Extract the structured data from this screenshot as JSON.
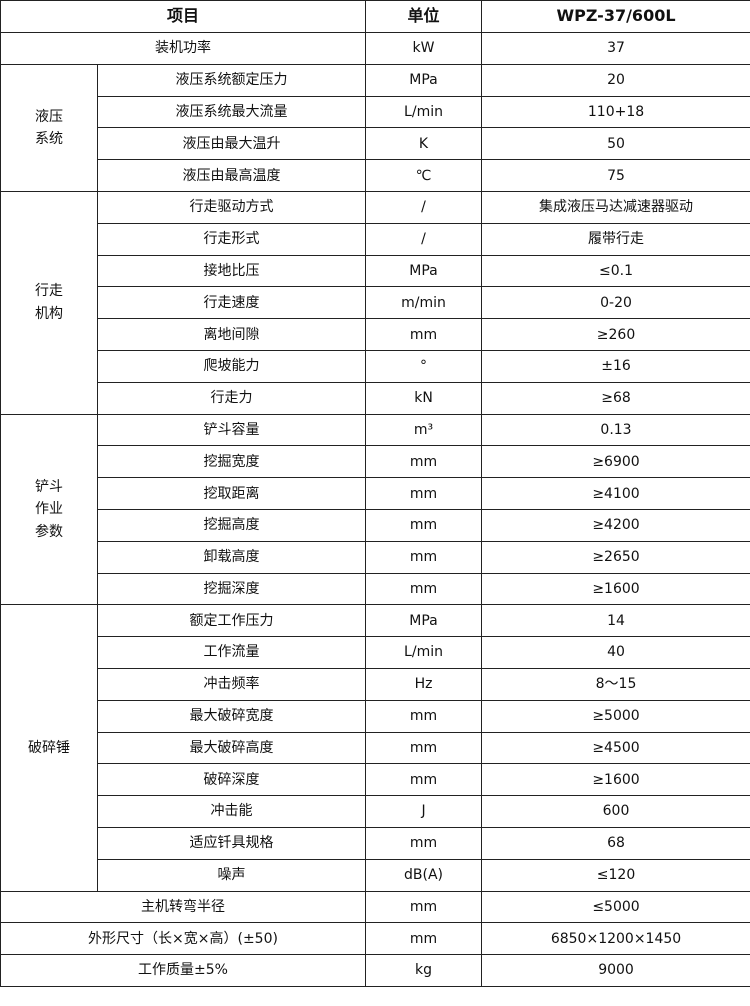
{
  "header": {
    "item": "项目",
    "unit": "单位",
    "model": "WPZ-37/600L"
  },
  "rows_before": [
    {
      "label": "装机功率",
      "unit": "kW",
      "value": "37"
    }
  ],
  "groups": [
    {
      "name": "液压\n系统",
      "rows": [
        {
          "label": "液压系统额定压力",
          "unit": "MPa",
          "value": "20"
        },
        {
          "label": "液压系统最大流量",
          "unit": "L/min",
          "value": "110+18"
        },
        {
          "label": "液压由最大温升",
          "unit": "K",
          "value": "50"
        },
        {
          "label": "液压由最高温度",
          "unit": "℃",
          "value": "75"
        }
      ]
    },
    {
      "name": "行走\n机构",
      "rows": [
        {
          "label": "行走驱动方式",
          "unit": "/",
          "value": "集成液压马达减速器驱动"
        },
        {
          "label": "行走形式",
          "unit": "/",
          "value": "履带行走"
        },
        {
          "label": "接地比压",
          "unit": "MPa",
          "value": "≤0.1"
        },
        {
          "label": "行走速度",
          "unit": "m/min",
          "value": "0-20"
        },
        {
          "label": "离地间隙",
          "unit": "mm",
          "value": "≥260"
        },
        {
          "label": "爬坡能力",
          "unit": "°",
          "value": "±16"
        },
        {
          "label": "行走力",
          "unit": "kN",
          "value": "≥68"
        }
      ]
    },
    {
      "name": "铲斗\n作业\n参数",
      "rows": [
        {
          "label": "铲斗容量",
          "unit": "m³",
          "value": "0.13"
        },
        {
          "label": "挖掘宽度",
          "unit": "mm",
          "value": "≥6900"
        },
        {
          "label": "挖取距离",
          "unit": "mm",
          "value": "≥4100"
        },
        {
          "label": "挖掘高度",
          "unit": "mm",
          "value": "≥4200"
        },
        {
          "label": "卸载高度",
          "unit": "mm",
          "value": "≥2650"
        },
        {
          "label": "挖掘深度",
          "unit": "mm",
          "value": "≥1600"
        }
      ]
    },
    {
      "name": "破碎锤",
      "rows": [
        {
          "label": "额定工作压力",
          "unit": "MPa",
          "value": "14"
        },
        {
          "label": "工作流量",
          "unit": "L/min",
          "value": "40"
        },
        {
          "label": "冲击频率",
          "unit": "Hz",
          "value": "8～15"
        },
        {
          "label": "最大破碎宽度",
          "unit": "mm",
          "value": "≥5000"
        },
        {
          "label": "最大破碎高度",
          "unit": "mm",
          "value": "≥4500"
        },
        {
          "label": "破碎深度",
          "unit": "mm",
          "value": "≥1600"
        },
        {
          "label": "冲击能",
          "unit": "J",
          "value": "600"
        },
        {
          "label": "适应钎具规格",
          "unit": "mm",
          "value": "68"
        },
        {
          "label": "噪声",
          "unit": "dB(A)",
          "value": "≤120"
        }
      ]
    }
  ],
  "rows_after": [
    {
      "label": "主机转弯半径",
      "unit": "mm",
      "value": "≤5000"
    },
    {
      "label": "外形尺寸（长×宽×高）(±50)",
      "unit": "mm",
      "value": "6850×1200×1450"
    },
    {
      "label": "工作质量±5%",
      "unit": "kg",
      "value": "9000"
    }
  ]
}
